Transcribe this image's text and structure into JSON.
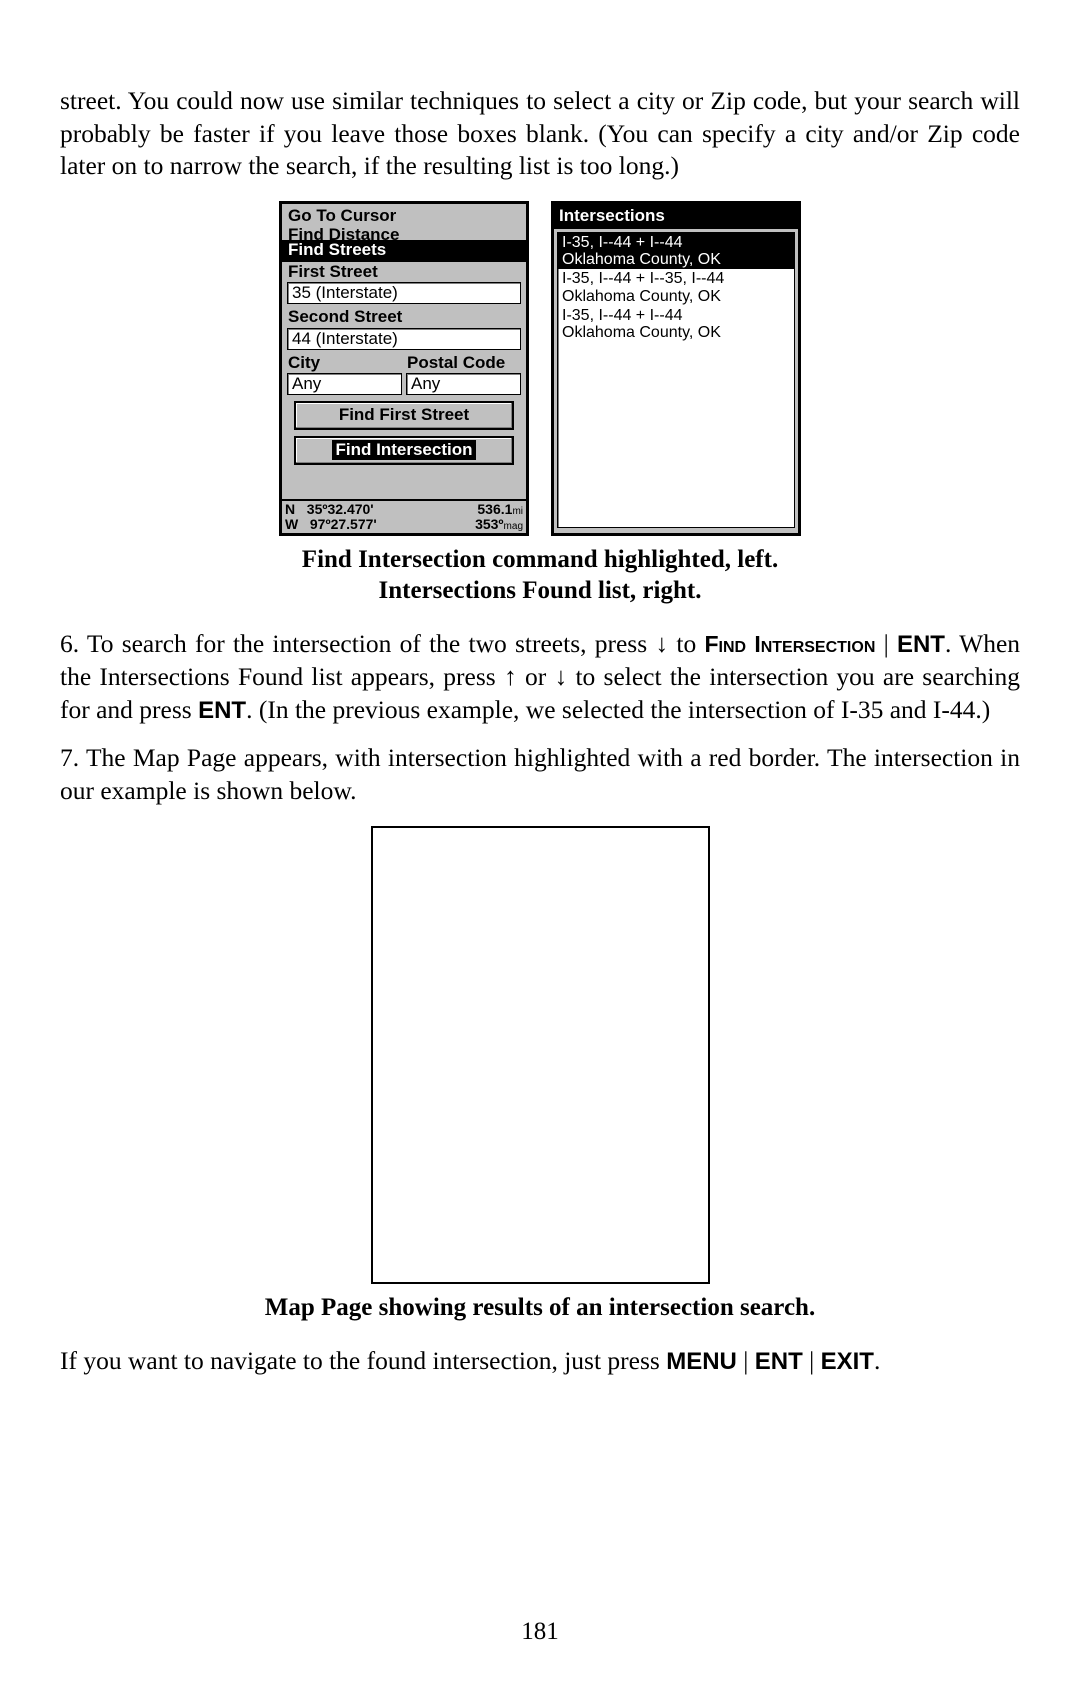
{
  "page_number": "181",
  "para_intro": "street. You could now use similar techniques to select a city or Zip code, but your search will probably be faster if you leave those boxes blank. (You can specify a city and/or Zip code later on to narrow the search, if the resulting list is too long.)",
  "caption1_line1": "Find Intersection command highlighted, left.",
  "caption1_line2": "Intersections Found list, right.",
  "step6": {
    "lead": "6. To search for the intersection of the two streets, press ",
    "arrow_down": "↓",
    "to": " to ",
    "find": "Find",
    "intersection": "Intersection",
    "sep": " | ",
    "ent": "ENT",
    "after_ent": ". When the Intersections Found list appears, press ",
    "arrow_up": "↑",
    "or": " or ",
    "arrow_down2": "↓",
    "mid": " to select the intersection you are searching for and press ",
    "ent2": "ENT",
    "tail": ". (In the previous example, we selected the intersection of I-35 and I-44.)"
  },
  "step7": "7. The Map Page appears, with intersection highlighted with a red border. The intersection in our example is shown below.",
  "caption2": "Map Page showing results of an intersection search.",
  "nav_sentence": {
    "lead": "If you want to navigate to the found intersection, just press ",
    "menu": "MENU",
    "sep": " | ",
    "ent": "ENT",
    "exit": "EXIT",
    "tail": "."
  },
  "left_panel": {
    "menu_line1": "Go To Cursor",
    "menu_line2": "Find Distance",
    "selected_menu": "Find Streets",
    "first_street_label": "First Street",
    "first_street_value": "35 (Interstate)",
    "second_street_label": "Second Street",
    "second_street_value": "44 (Interstate)",
    "city_label": "City",
    "postal_label": "Postal Code",
    "city_value": "Any",
    "postal_value": "Any",
    "btn_find_first": "Find First Street",
    "btn_find_intersection": "Find Intersection",
    "status": {
      "n_label": "N",
      "w_label": "W",
      "lat": "35º32.470'",
      "lon": "97º27.577'",
      "dist_value": "536.1",
      "dist_unit": "mi",
      "bearing_value": "353º",
      "bearing_unit": "mag"
    }
  },
  "right_panel": {
    "title": "Intersections",
    "items": [
      {
        "l1": "I-35, I--44 + I--44",
        "l2": "Oklahoma County, OK",
        "selected": true
      },
      {
        "l1": "I-35, I--44 + I--35, I--44",
        "l2": "Oklahoma County, OK",
        "selected": false
      },
      {
        "l1": "I-35, I--44 + I--44",
        "l2": "Oklahoma County, OK",
        "selected": false
      }
    ]
  }
}
